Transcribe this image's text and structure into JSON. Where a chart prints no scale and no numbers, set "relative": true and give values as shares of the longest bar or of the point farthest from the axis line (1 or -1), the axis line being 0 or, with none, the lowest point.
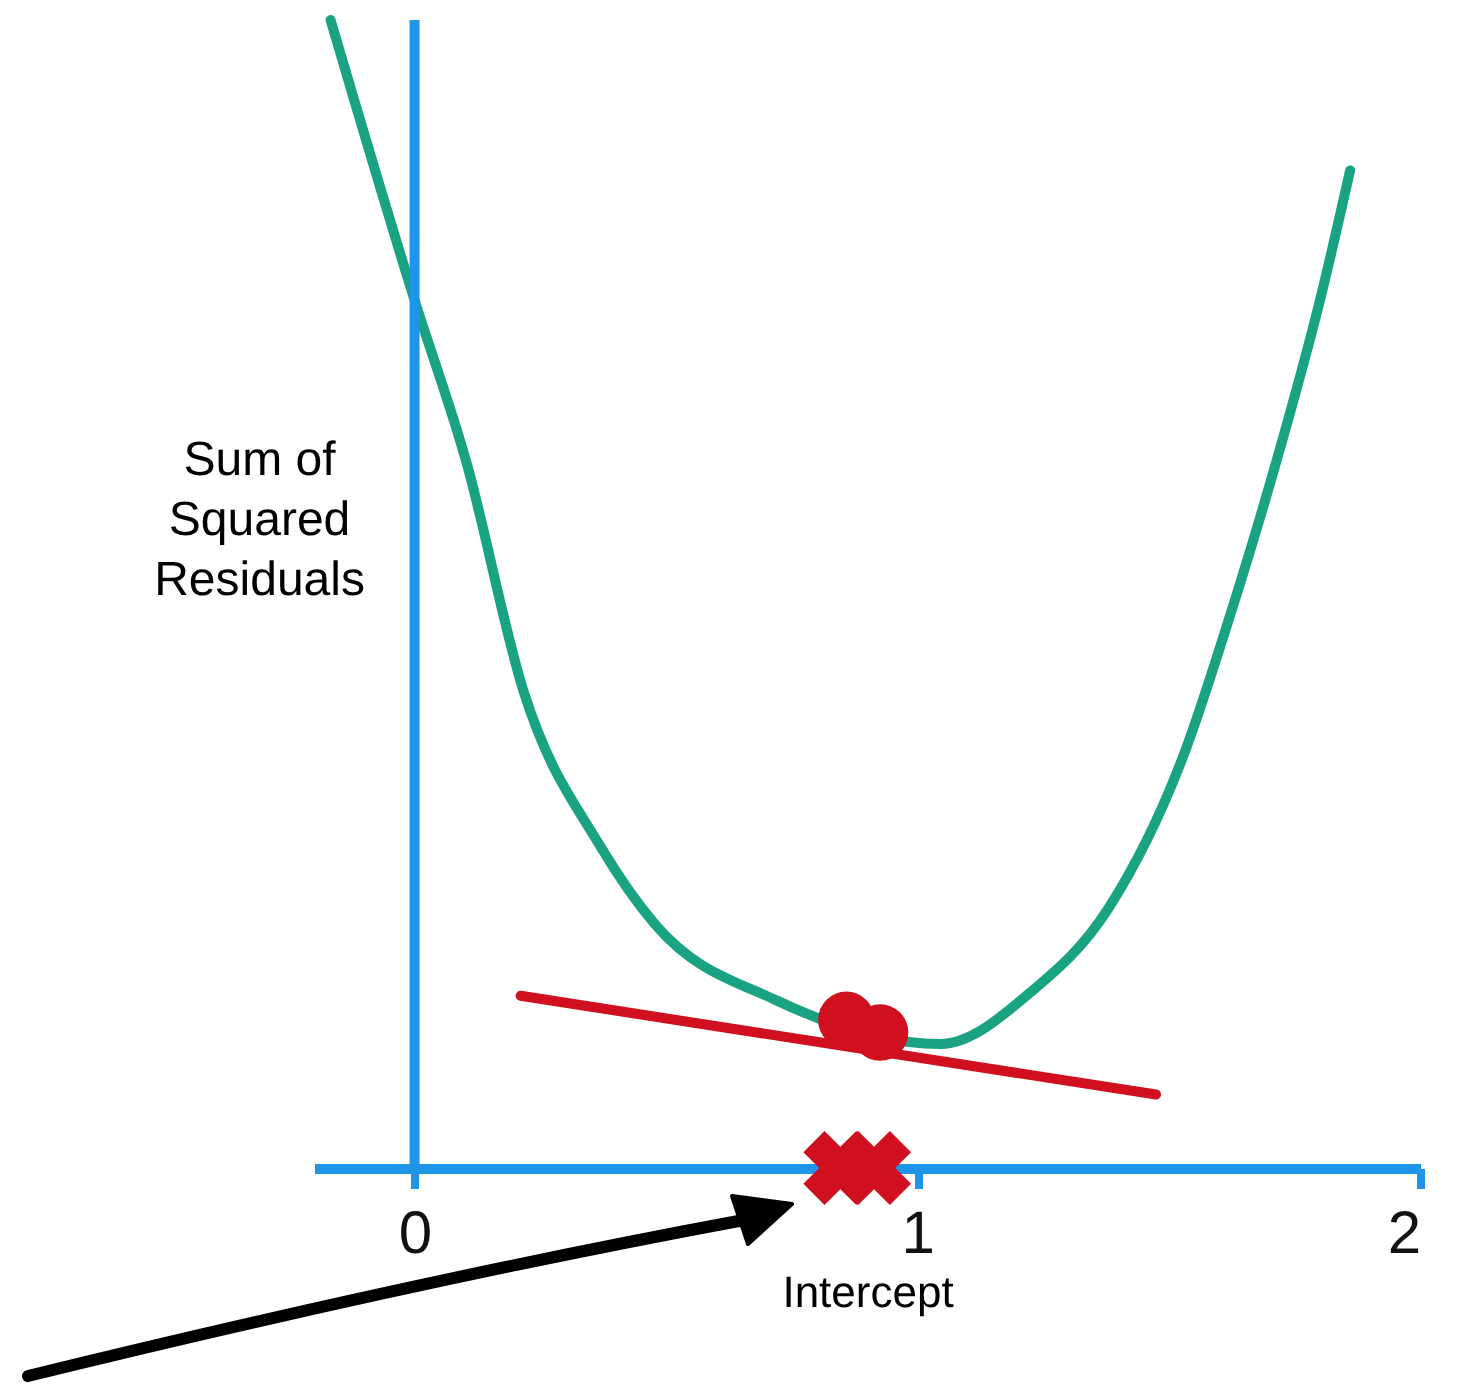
{
  "chart_data": {
    "type": "line",
    "xlabel": "Intercept",
    "ylabel": "Sum of Squared Residuals",
    "relative": true,
    "xlim": [
      -0.2,
      2
    ],
    "xticks": [
      0,
      1,
      2
    ],
    "tick_labels": "x",
    "grid": false,
    "ref_lines": [
      {
        "axis": "x",
        "value": 0,
        "color": "#1e95e8"
      }
    ],
    "series": [
      {
        "color": "#1aa383",
        "x": [
          -0.167,
          0,
          0.103,
          0.217,
          0.37,
          0.477,
          0.72,
          1.046,
          1.225,
          1.38,
          1.531,
          1.622,
          1.714,
          1.805,
          1.861
        ],
        "values": [
          1.0,
          0.756,
          0.615,
          0.415,
          0.28,
          0.213,
          0.146,
          0.108,
          0.153,
          0.226,
          0.361,
          0.481,
          0.615,
          0.763,
          0.869
        ]
      },
      {
        "color": "#d0101e",
        "x": [
          0.211,
          1.475
        ],
        "values": [
          0.15,
          0.064
        ]
      },
      {
        "type": "scatter",
        "marker": "circle",
        "color": "#d0101e",
        "x": [
          0.859,
          0.926
        ],
        "values": [
          0.129,
          0.118
        ]
      },
      {
        "type": "scatter",
        "marker": "cross",
        "color": "#d0101e",
        "x": [
          0.847,
          0.914
        ],
        "values": [
          0,
          0
        ]
      }
    ]
  }
}
